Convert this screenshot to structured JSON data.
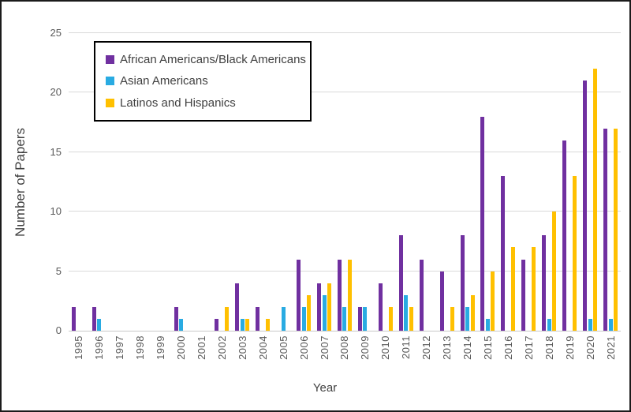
{
  "figure": {
    "background": "#FFFFFF",
    "border_color": "#1B1B1B"
  },
  "chart_data": {
    "type": "bar",
    "title": "",
    "xlabel": "Year",
    "ylabel": "Number of Papers",
    "ylim": [
      0,
      25
    ],
    "yticks": [
      0,
      5,
      10,
      15,
      20,
      25
    ],
    "grid": "horizontal",
    "gridline_color": "#D9D9D9",
    "tick_label_color": "#595959",
    "axis_title_color": "#404040",
    "legend_position": "inside-top-left-boxed",
    "categories": [
      "1995",
      "1996",
      "1997",
      "1998",
      "1999",
      "2000",
      "2001",
      "2002",
      "2003",
      "2004",
      "2005",
      "2006",
      "2007",
      "2008",
      "2009",
      "2010",
      "2011",
      "2012",
      "2013",
      "2014",
      "2015",
      "2016",
      "2017",
      "2018",
      "2019",
      "2020",
      "2021"
    ],
    "series": [
      {
        "name": "African Americans/Black Americans",
        "color": "#7030A0",
        "values": [
          2,
          2,
          0,
          0,
          0,
          2,
          0,
          1,
          4,
          2,
          0,
          6,
          4,
          6,
          2,
          4,
          8,
          6,
          5,
          8,
          18,
          13,
          6,
          8,
          16,
          21,
          17
        ]
      },
      {
        "name": "Asian Americans",
        "color": "#29ABE2",
        "values": [
          0,
          1,
          0,
          0,
          0,
          1,
          0,
          0,
          1,
          0,
          2,
          2,
          3,
          2,
          2,
          0,
          3,
          0,
          0,
          2,
          1,
          0,
          0,
          1,
          0,
          1,
          1
        ]
      },
      {
        "name": "Latinos and Hispanics",
        "color": "#FFC000",
        "values": [
          0,
          0,
          0,
          0,
          0,
          0,
          0,
          2,
          1,
          1,
          0,
          3,
          4,
          6,
          0,
          2,
          2,
          0,
          2,
          3,
          5,
          7,
          7,
          10,
          13,
          22,
          17
        ]
      }
    ]
  }
}
